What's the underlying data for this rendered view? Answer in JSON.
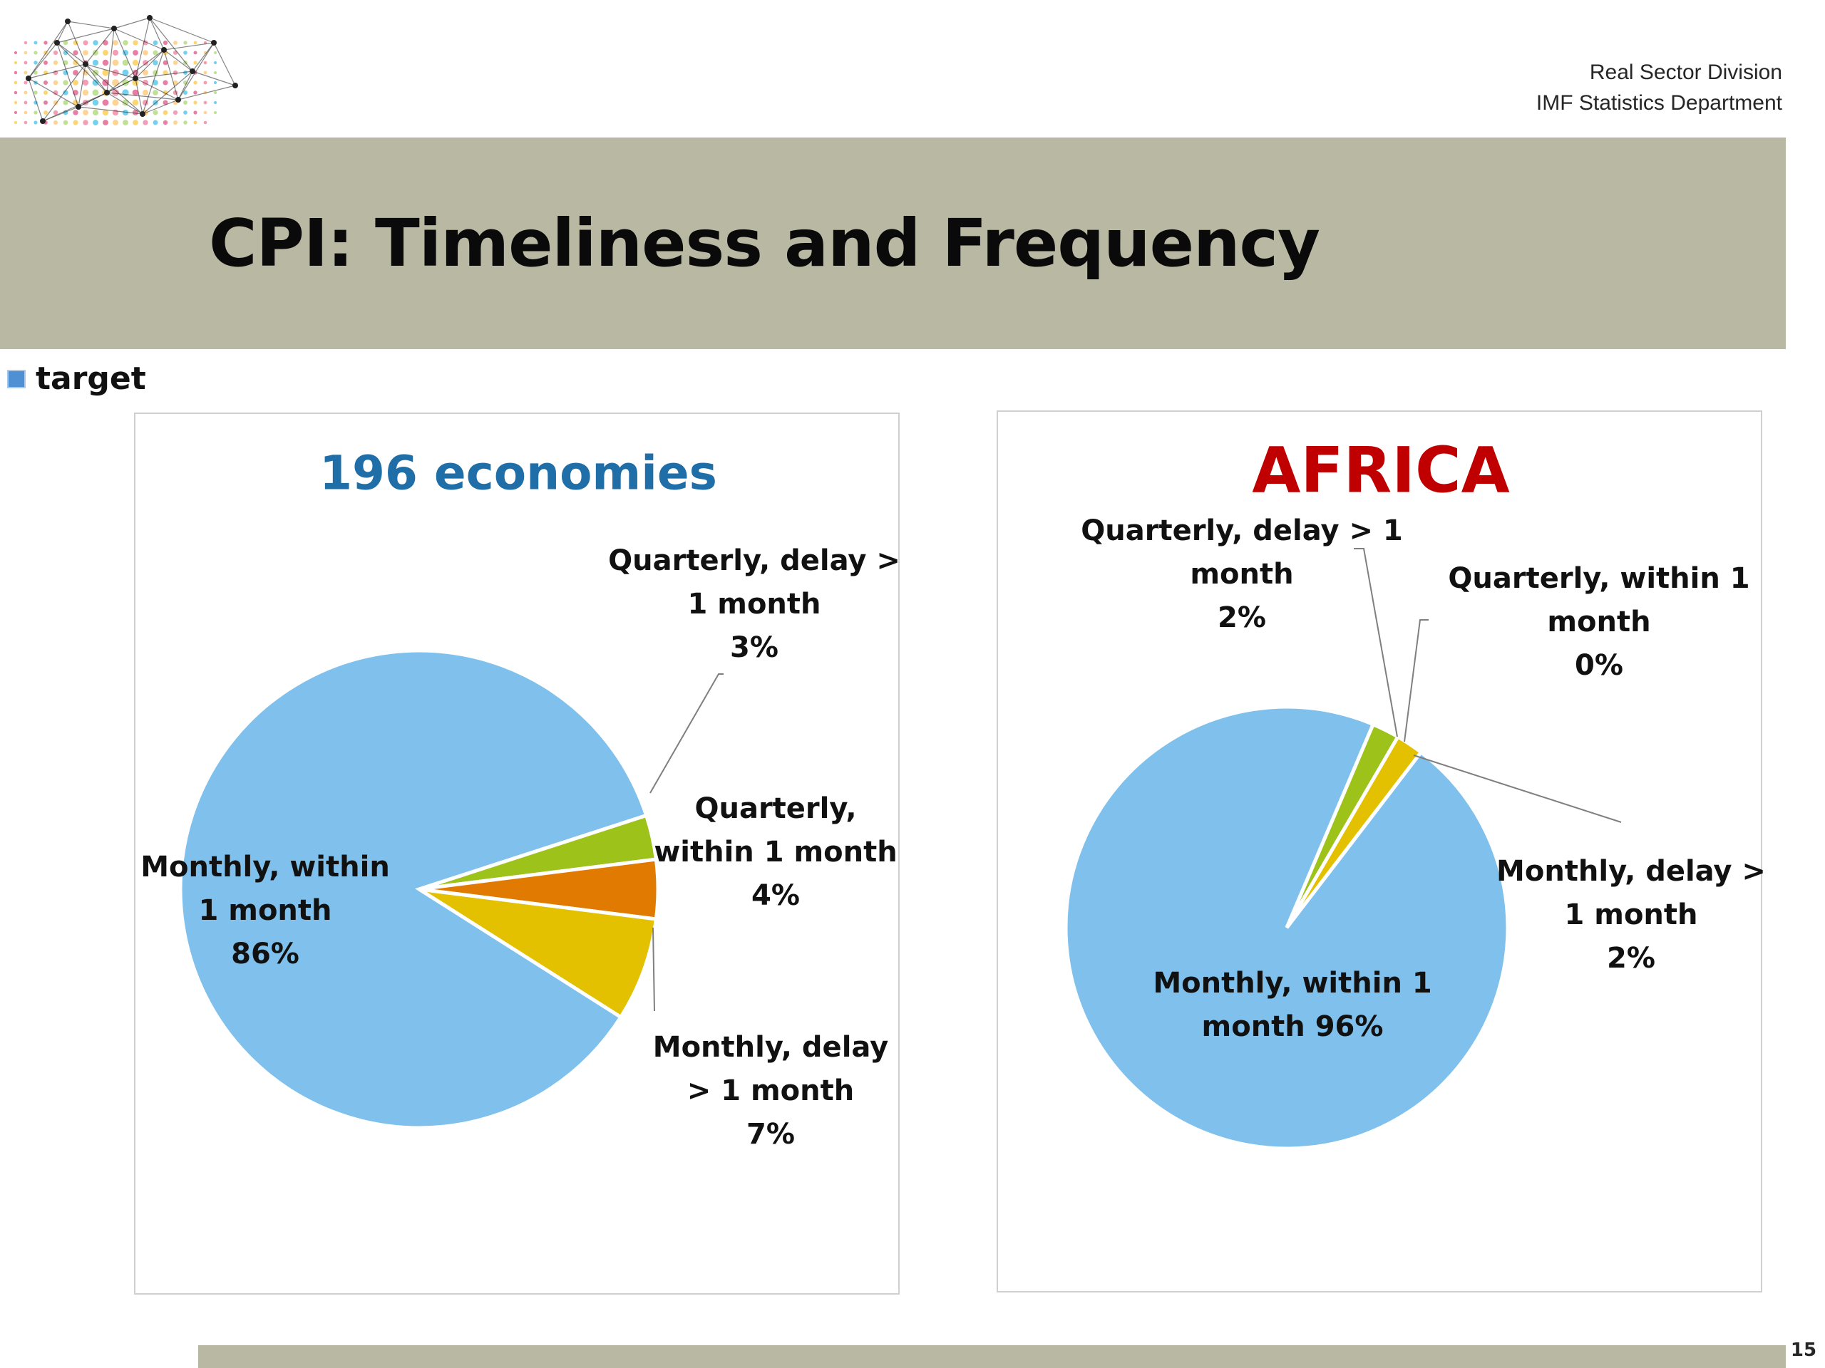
{
  "header": {
    "org_line1": "Real Sector Division",
    "org_line2": "IMF Statistics Department",
    "title": "CPI: Timeliness and Frequency"
  },
  "legend": {
    "label": "target",
    "color": "#4f8fd4"
  },
  "page_number": "15",
  "chart_data": [
    {
      "type": "pie",
      "title": "196 economies",
      "title_color": "#1f6ea8",
      "slices": [
        {
          "name": "Monthly, within 1 month",
          "value": 86,
          "label_lines": [
            "Monthly, within",
            "1 month",
            "86%"
          ],
          "color": "#7fc1ec"
        },
        {
          "name": "Quarterly, delay > 1 month",
          "value": 3,
          "label_lines": [
            "Quarterly, delay >",
            "1 month",
            "3%"
          ],
          "color": "#9dc31a"
        },
        {
          "name": "Quarterly, within 1 month",
          "value": 4,
          "label_lines": [
            "Quarterly,",
            "within 1 month",
            "4%"
          ],
          "color": "#e07a00"
        },
        {
          "name": "Monthly, delay > 1 month",
          "value": 7,
          "label_lines": [
            "Monthly, delay",
            "> 1 month",
            "7%"
          ],
          "color": "#e3c000"
        }
      ]
    },
    {
      "type": "pie",
      "title": "AFRICA",
      "title_color": "#c00000",
      "slices": [
        {
          "name": "Monthly, within 1 month",
          "value": 96,
          "label_lines": [
            "Monthly, within 1",
            "month 96%"
          ],
          "color": "#7fc1ec"
        },
        {
          "name": "Quarterly, delay > 1 month",
          "value": 2,
          "label_lines": [
            "Quarterly, delay > 1",
            "month",
            "2%"
          ],
          "color": "#9dc31a"
        },
        {
          "name": "Quarterly, within 1 month",
          "value": 0,
          "label_lines": [
            "Quarterly, within 1",
            "month",
            "0%"
          ],
          "color": "#e07a00"
        },
        {
          "name": "Monthly, delay > 1 month",
          "value": 2,
          "label_lines": [
            "Monthly, delay >",
            "1 month",
            "2%"
          ],
          "color": "#e3c000"
        }
      ]
    }
  ]
}
